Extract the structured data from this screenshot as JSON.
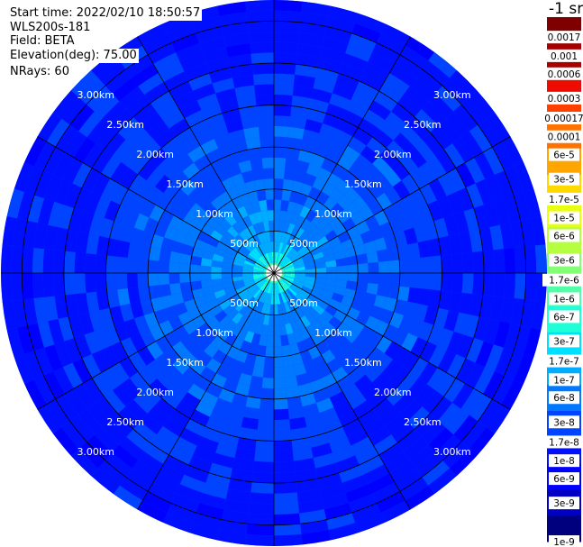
{
  "info": {
    "start_time": "Start time: 2022/02/10 18:50:57",
    "instrument": "WLS200s-181",
    "field": "Field: BETA",
    "elevation": "Elevation(deg): 75.00",
    "nrays": "NRays: 60"
  },
  "chart_data": {
    "type": "heatmap",
    "projection": "polar (PPI scan)",
    "field": "BETA",
    "colorbar_title": "-1 sr",
    "range_rings": [
      "500m",
      "1.00km",
      "1.50km",
      "2.00km",
      "2.50km",
      "3.00km"
    ],
    "range_ring_values_km": [
      0.5,
      1.0,
      1.5,
      2.0,
      2.5,
      3.0
    ],
    "max_range_km": 3.25,
    "spokes_deg": [
      0,
      30,
      60,
      90,
      120,
      150,
      180,
      210,
      240,
      270,
      300,
      330
    ],
    "ring_label_bearings_deg": [
      45,
      135,
      225,
      315
    ],
    "colorbar": {
      "scale": "log",
      "range": [
        1e-09,
        0.003
      ],
      "tick_labels": [
        "1e-9",
        "3e-9",
        "6e-9",
        "1e-8",
        "1.7e-8",
        "3e-8",
        "6e-8",
        "1e-7",
        "1.7e-7",
        "3e-7",
        "6e-7",
        "1e-6",
        "1.7e-6",
        "3e-6",
        "6e-6",
        "1e-5",
        "1.7e-5",
        "3e-5",
        "6e-5",
        "0.0001",
        "0.00017",
        "0.0003",
        "0.0006",
        "0.001",
        "0.0017"
      ],
      "colors": [
        "#00007f",
        "#0000c4",
        "#0000ff",
        "#0010ff",
        "#0044ff",
        "#0078ff",
        "#00acff",
        "#00dfff",
        "#1fffd7",
        "#50ffa6",
        "#83ff73",
        "#b6ff40",
        "#e9ff0d",
        "#ffd800",
        "#ffa500",
        "#ff7200",
        "#ff3f00",
        "#ee0c00",
        "#a70000",
        "#7f0000"
      ]
    },
    "radial_profile": [
      {
        "range_km": 0.1,
        "beta": 1e-06
      },
      {
        "range_km": 0.2,
        "beta": 3e-07
      },
      {
        "range_km": 0.3,
        "beta": 1.3e-07
      },
      {
        "range_km": 0.5,
        "beta": 8e-08
      },
      {
        "range_km": 1.0,
        "beta": 5e-08
      },
      {
        "range_km": 1.5,
        "beta": 3.5e-08
      },
      {
        "range_km": 2.0,
        "beta": 2.2e-08
      },
      {
        "range_km": 2.5,
        "beta": 1.6e-08
      },
      {
        "range_km": 3.0,
        "beta": 1.3e-08
      }
    ]
  }
}
